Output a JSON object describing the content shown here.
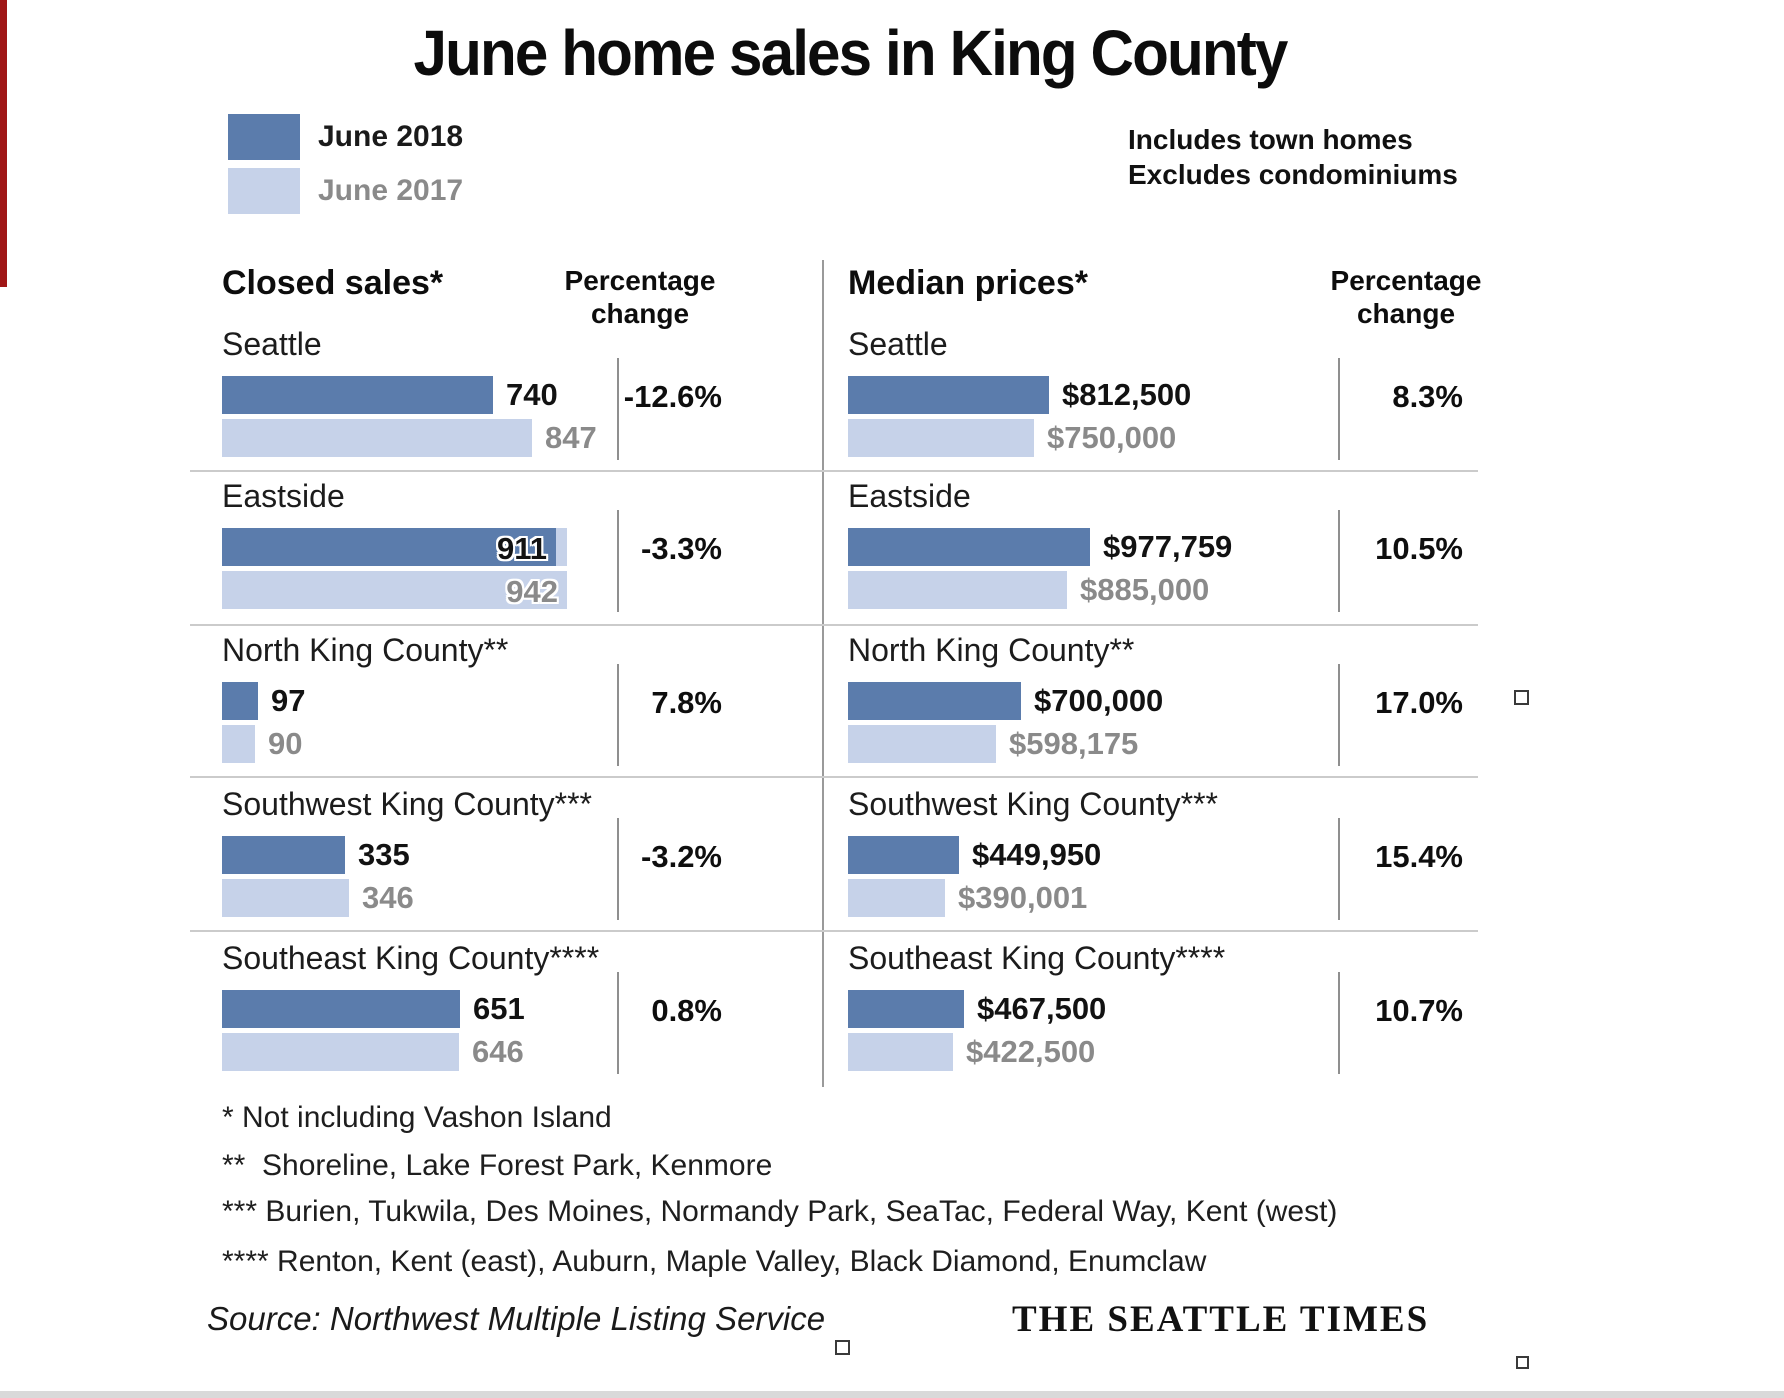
{
  "title": "June home sales in King County",
  "legend": {
    "items": [
      {
        "label": "June 2018",
        "color": "#5b7cac"
      },
      {
        "label": "June 2017",
        "color": "#c6d2e9"
      }
    ]
  },
  "notes": {
    "line1": "Includes town homes",
    "line2": "Excludes condominiums"
  },
  "left_panel": {
    "header": "Closed sales*",
    "pct_header_line1": "Percentage",
    "pct_header_line2": "change",
    "rows": [
      {
        "region": "Seattle",
        "v2018": "740",
        "v2017": "847",
        "pct": "-12.6%"
      },
      {
        "region": "Eastside",
        "v2018": "911",
        "v2017": "942",
        "pct": "-3.3%"
      },
      {
        "region": "North King County**",
        "v2018": "97",
        "v2017": "90",
        "pct": "7.8%"
      },
      {
        "region": "Southwest King County***",
        "v2018": "335",
        "v2017": "346",
        "pct": "-3.2%"
      },
      {
        "region": "Southeast King County****",
        "v2018": "651",
        "v2017": "646",
        "pct": "0.8%"
      }
    ]
  },
  "right_panel": {
    "header": "Median prices*",
    "pct_header_line1": "Percentage",
    "pct_header_line2": "change",
    "rows": [
      {
        "region": "Seattle",
        "v2018": "$812,500",
        "v2017": "$750,000",
        "pct": "8.3%"
      },
      {
        "region": "Eastside",
        "v2018": "$977,759",
        "v2017": "$885,000",
        "pct": "10.5%"
      },
      {
        "region": "North King County**",
        "v2018": "$700,000",
        "v2017": "$598,175",
        "pct": "17.0%"
      },
      {
        "region": "Southwest King County***",
        "v2018": "$449,950",
        "v2017": "$390,001",
        "pct": "15.4%"
      },
      {
        "region": "Southeast King County****",
        "v2018": "$467,500",
        "v2017": "$422,500",
        "pct": "10.7%"
      }
    ]
  },
  "footnotes": [
    "* Not including Vashon Island",
    "**  Shoreline, Lake Forest Park, Kenmore",
    "*** Burien, Tukwila, Des Moines, Normandy Park, SeaTac, Federal Way, Kent (west)",
    "**** Renton, Kent (east), Auburn, Maple Valley, Black Diamond, Enumclaw"
  ],
  "source": "Source: Northwest Multiple Listing Service",
  "credit": "THE SEATTLE TIMES",
  "colors": {
    "bar_2018": "#5b7cac",
    "bar_2017": "#c6d2e9",
    "value_2017_text": "#8a8a8a",
    "separator": "#cbcbcb",
    "tick": "#8f8f8f"
  },
  "chart_data": {
    "type": "bar",
    "orientation": "horizontal",
    "title": "June home sales in King County",
    "legend": [
      "June 2018",
      "June 2017"
    ],
    "legend_position": "top-left",
    "notes": [
      "Includes town homes",
      "Excludes condominiums"
    ],
    "categories": [
      "Seattle",
      "Eastside",
      "North King County**",
      "Southwest King County***",
      "Southeast King County****"
    ],
    "panels": [
      {
        "title": "Closed sales*",
        "series": [
          {
            "name": "June 2018",
            "values": [
              740,
              911,
              97,
              335,
              651
            ]
          },
          {
            "name": "June 2017",
            "values": [
              847,
              942,
              90,
              346,
              646
            ]
          }
        ],
        "percentage_change": [
          "-12.6%",
          "-3.3%",
          "7.8%",
          "-3.2%",
          "0.8%"
        ]
      },
      {
        "title": "Median prices*",
        "series": [
          {
            "name": "June 2018",
            "values": [
              812500,
              977759,
              700000,
              449950,
              467500
            ]
          },
          {
            "name": "June 2017",
            "values": [
              750000,
              885000,
              598175,
              390001,
              422500
            ]
          }
        ],
        "percentage_change": [
          "8.3%",
          "10.5%",
          "17.0%",
          "15.4%",
          "10.7%"
        ]
      }
    ]
  }
}
